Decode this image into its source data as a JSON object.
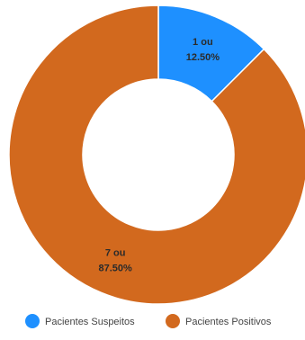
{
  "chart_data": {
    "type": "pie",
    "donut": true,
    "title": "",
    "series": [
      {
        "name": "Pacientes Suspeitos",
        "value": 1,
        "percent": "12.50%",
        "label_line1": "1 ou",
        "label_line2": "12.50%",
        "color": "#1E90FF"
      },
      {
        "name": "Pacientes Positivos",
        "value": 7,
        "percent": "87.50%",
        "label_line1": "7 ou",
        "label_line2": "87.50%",
        "color": "#D2691E"
      }
    ],
    "legend_position": "bottom"
  }
}
